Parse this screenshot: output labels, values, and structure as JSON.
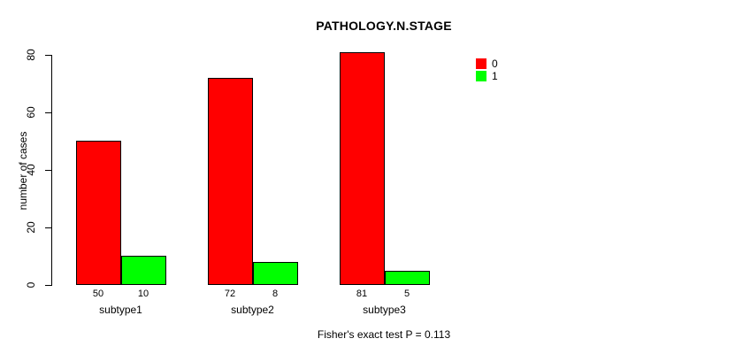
{
  "chart_data": {
    "type": "bar",
    "title": "PATHOLOGY.N.STAGE",
    "ylabel": "number of cases",
    "xlabel": "",
    "categories": [
      "subtype1",
      "subtype2",
      "subtype3"
    ],
    "series": [
      {
        "name": "0",
        "color": "#ff0000",
        "values": [
          50,
          72,
          81
        ]
      },
      {
        "name": "1",
        "color": "#00ff00",
        "values": [
          10,
          8,
          5
        ]
      }
    ],
    "bar_value_labels": [
      [
        "50",
        "10"
      ],
      [
        "72",
        "8"
      ],
      [
        "81",
        "5"
      ]
    ],
    "yticks": [
      0,
      20,
      40,
      60,
      80
    ],
    "ylim": [
      0,
      80
    ],
    "grid": false,
    "legend": {
      "position": "top-right",
      "entries": [
        "0",
        "1"
      ]
    },
    "annotation": "Fisher's exact test P = 0.113",
    "colors": {
      "axis": "#000000",
      "text": "#000000",
      "background": "#ffffff"
    }
  }
}
